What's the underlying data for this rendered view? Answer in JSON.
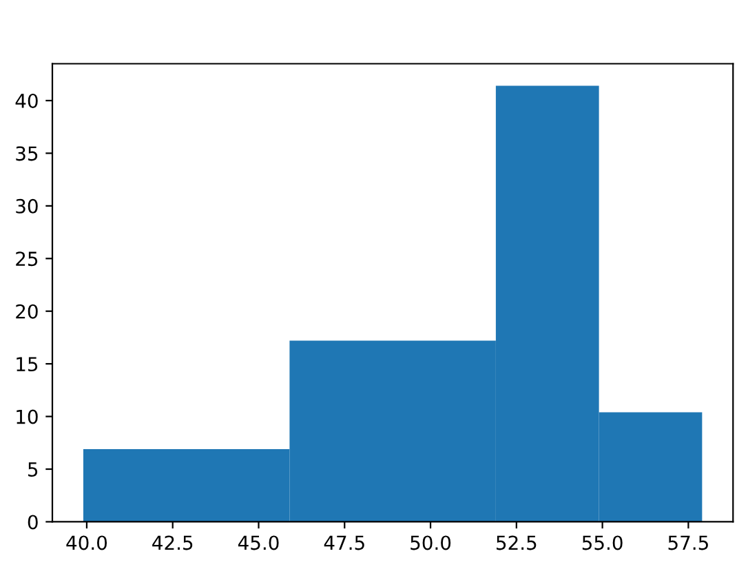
{
  "chart_data": {
    "type": "histogram",
    "bins": [
      39.9,
      45.9,
      51.9,
      54.9,
      57.9
    ],
    "values": [
      6.9,
      17.2,
      41.4,
      10.4
    ],
    "color": "#1f77b4",
    "xlim": [
      39.0,
      58.8
    ],
    "xticks": [
      {
        "value": 40,
        "label": "40.0"
      },
      42.5,
      {
        "value": 45,
        "label": "45.0"
      },
      47.5,
      {
        "value": 50,
        "label": "50.0"
      },
      52.5,
      {
        "value": 55,
        "label": "55.0"
      },
      57.5
    ],
    "ylim": [
      0,
      43.5
    ],
    "yticks": [
      0,
      5,
      10,
      15,
      20,
      25,
      30,
      35,
      40
    ],
    "grid": false
  }
}
